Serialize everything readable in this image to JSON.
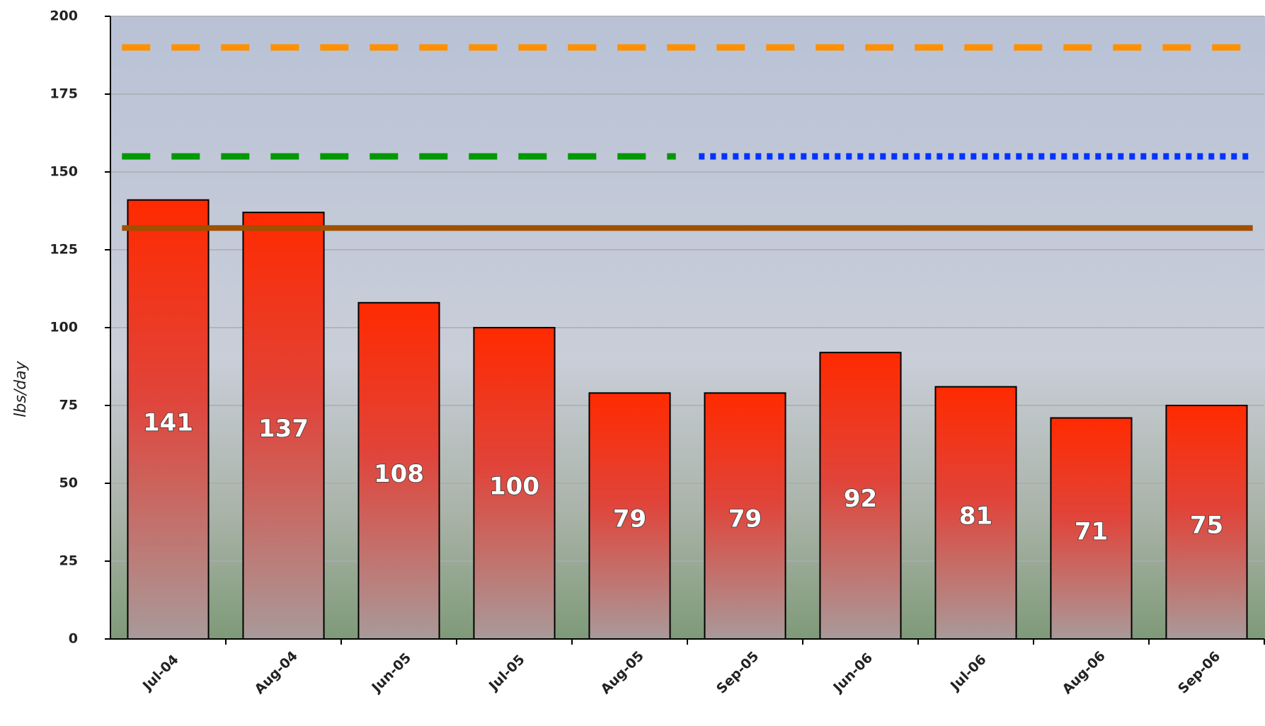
{
  "chart_data": {
    "type": "bar",
    "y_label": "lbs/day",
    "categories": [
      "Jul-04",
      "Aug-04",
      "Jun-05",
      "Jul-05",
      "Aug-05",
      "Sep-05",
      "Jun-06",
      "Jul-06",
      "Aug-06",
      "Sep-06"
    ],
    "values": [
      141,
      137,
      108,
      100,
      79,
      79,
      92,
      81,
      71,
      75
    ],
    "color": "#ff2a00",
    "ylim": [
      0,
      200
    ],
    "yticks": [
      0,
      25,
      50,
      75,
      100,
      125,
      150,
      175,
      200
    ],
    "grid": true,
    "lines": [
      {
        "color": "#ff9000",
        "style": "dashed",
        "values": [
          190,
          190,
          190,
          190,
          190,
          190,
          190,
          190,
          190,
          190
        ]
      },
      {
        "color": "#009900",
        "style": "dashed",
        "values": [
          155,
          155,
          155,
          155,
          155,
          null,
          null,
          null,
          null,
          null
        ]
      },
      {
        "color": "#0033ff",
        "style": "dotted",
        "values": [
          null,
          null,
          null,
          null,
          null,
          155,
          155,
          155,
          155,
          155
        ]
      },
      {
        "color": "#a05000",
        "style": "solid",
        "values": [
          132,
          132,
          132,
          132,
          132,
          132,
          132,
          132,
          132,
          132
        ]
      }
    ]
  }
}
